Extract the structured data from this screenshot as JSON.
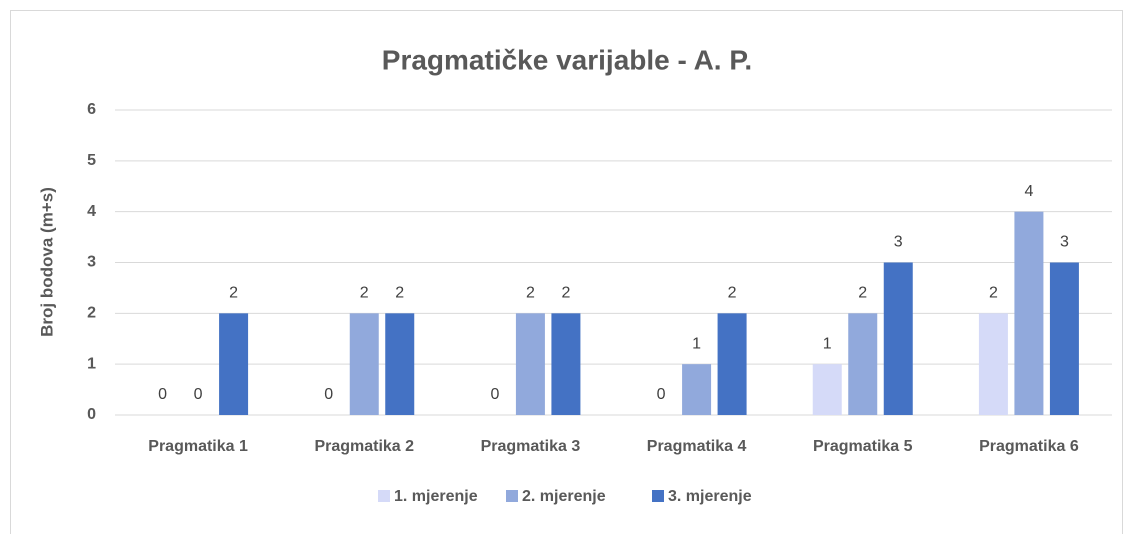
{
  "chart_data": {
    "type": "bar",
    "title": "Pragmatičke varijable - A. P.",
    "y_label": "Broj bodova (m+s)",
    "categories": [
      "Pragmatika 1",
      "Pragmatika 2",
      "Pragmatika 3",
      "Pragmatika 4",
      "Pragmatika 5",
      "Pragmatika 6"
    ],
    "series": [
      {
        "name": "1. mjerenje",
        "color": "#d5daf8",
        "values": [
          0,
          0,
          0,
          0,
          1,
          2
        ]
      },
      {
        "name": "2. mjerenje",
        "color": "#91a9dc",
        "values": [
          0,
          2,
          2,
          1,
          2,
          4
        ]
      },
      {
        "name": "3. mjerenje",
        "color": "#4472c4",
        "values": [
          2,
          2,
          2,
          2,
          3,
          3
        ]
      }
    ],
    "ylim": [
      0,
      6
    ],
    "yticks": [
      0,
      1,
      2,
      3,
      4,
      5,
      6
    ],
    "grid": true,
    "legend": "bottom"
  }
}
